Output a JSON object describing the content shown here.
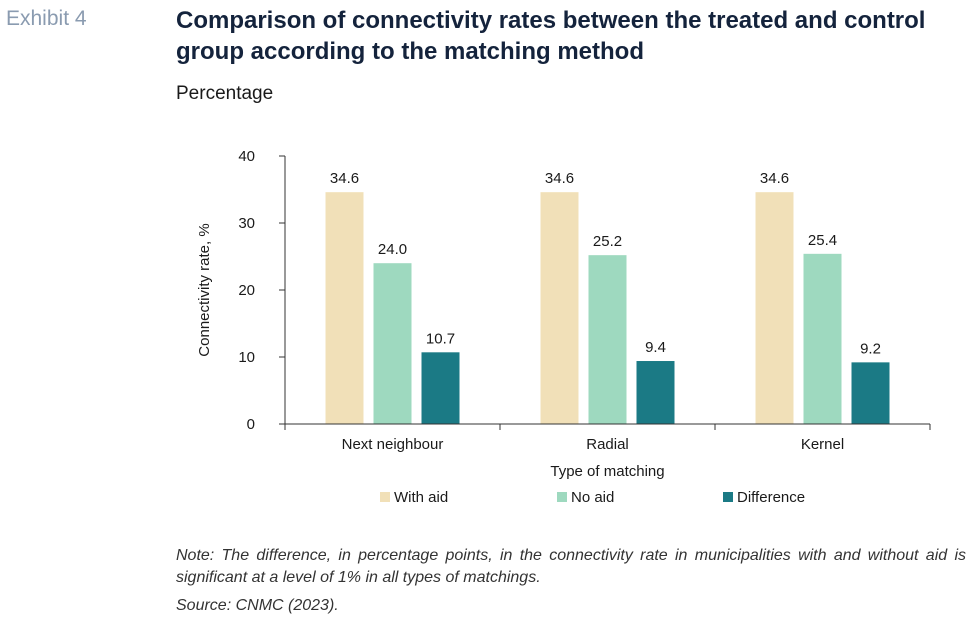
{
  "header": {
    "exhibit": "Exhibit 4",
    "title": "Comparison of connectivity rates between the treated and control group according to the matching method",
    "subtitle": "Percentage"
  },
  "chart_data": {
    "type": "bar",
    "categories": [
      "Next neighbour",
      "Radial",
      "Kernel"
    ],
    "series": [
      {
        "name": "With aid",
        "values": [
          34.6,
          34.6,
          34.6
        ],
        "color": "#f1e0b8"
      },
      {
        "name": "No aid",
        "values": [
          24.0,
          25.2,
          25.4
        ],
        "color": "#9ed9bf"
      },
      {
        "name": "Difference",
        "values": [
          10.7,
          9.4,
          9.2
        ],
        "color": "#1b7a85"
      }
    ],
    "data_labels": [
      [
        "34.6",
        "34.6",
        "34.6"
      ],
      [
        "24.0",
        "25.2",
        "25.4"
      ],
      [
        "10.7",
        "9.4",
        "9.2"
      ]
    ],
    "xlabel": "Type of matching",
    "ylabel": "Connectivity rate, %",
    "ylim": [
      0,
      40
    ],
    "yticks": [
      0,
      10,
      20,
      30,
      40
    ],
    "grid": false,
    "legend_position": "bottom"
  },
  "footer": {
    "note": "Note: The difference, in percentage points, in the connectivity rate in municipalities with and without aid is significant at a level of 1% in all types of matchings.",
    "source": "Source: CNMC (2023)."
  }
}
